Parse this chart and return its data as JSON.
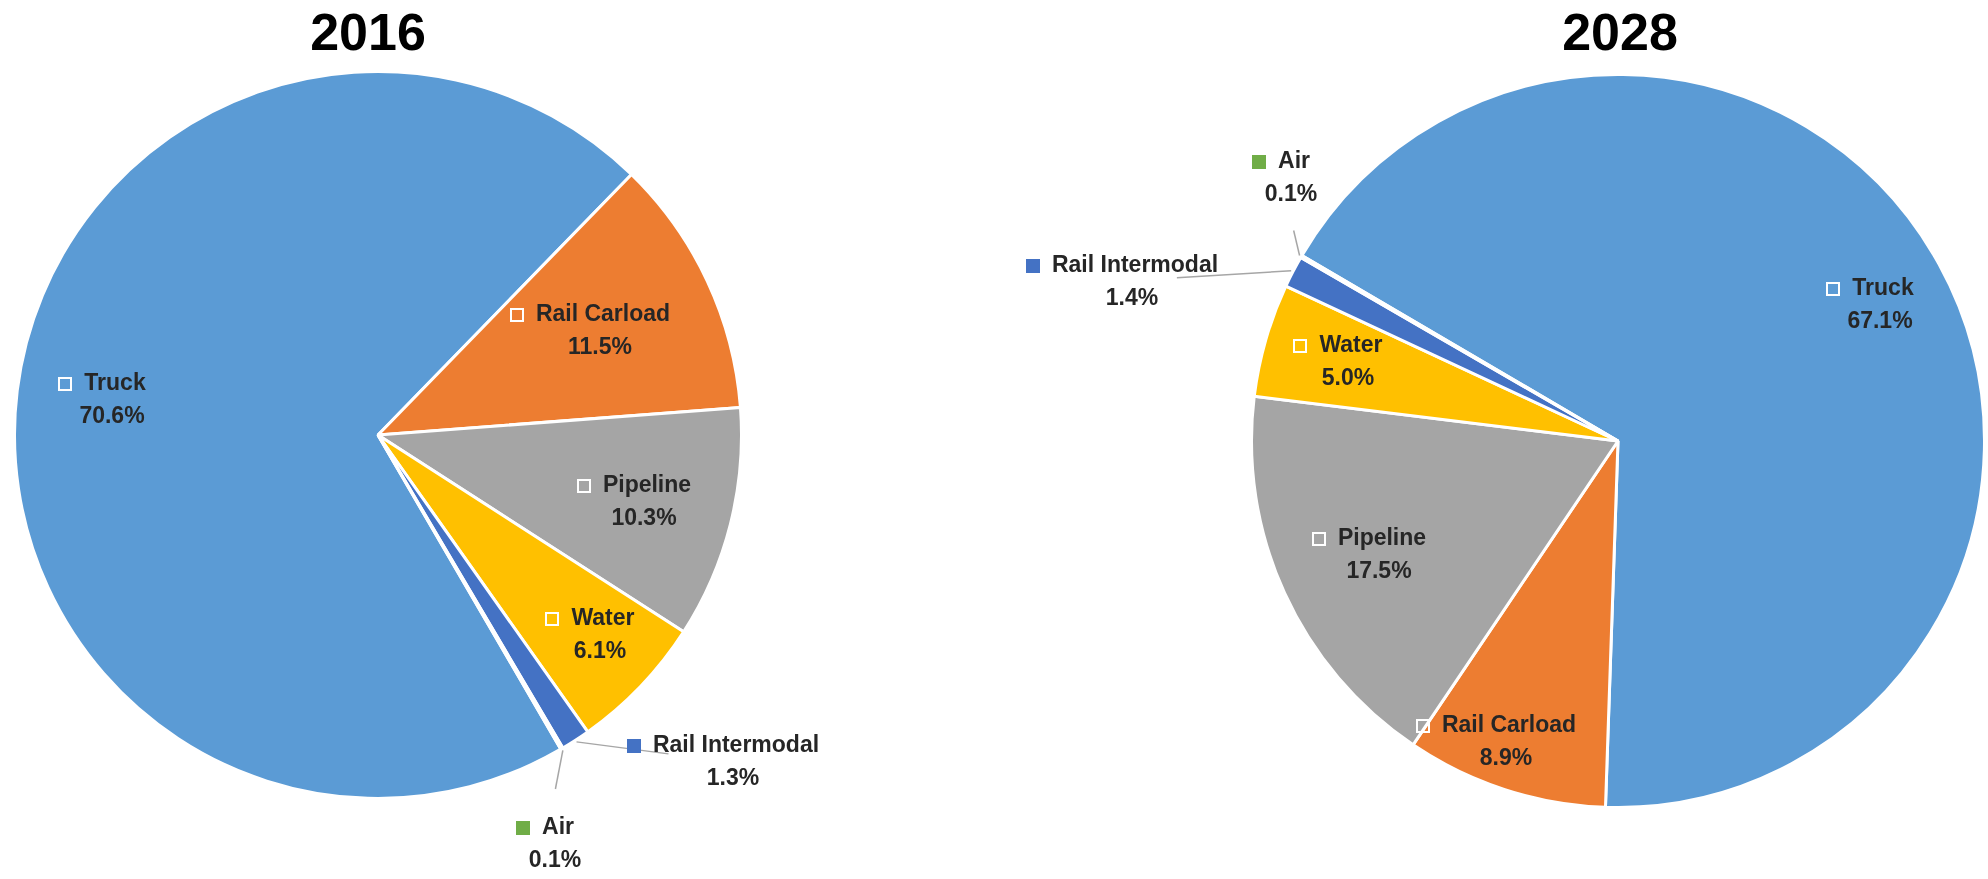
{
  "chart_data": [
    {
      "type": "pie",
      "title": "2016",
      "categories": [
        "Truck",
        "Rail Carload",
        "Pipeline",
        "Water",
        "Rail Intermodal",
        "Air"
      ],
      "values": [
        70.6,
        11.5,
        10.3,
        6.1,
        1.3,
        0.1
      ],
      "value_labels": [
        "70.6%",
        "11.5%",
        "10.3%",
        "6.1%",
        "1.3%",
        "0.1%"
      ],
      "colors": [
        "#5b9bd5",
        "#ed7d31",
        "#a5a5a5",
        "#ffc000",
        "#4472c4",
        "#70ad47"
      ],
      "legend": "bottom right"
    },
    {
      "type": "pie",
      "title": "2028",
      "categories": [
        "Truck",
        "Rail Carload",
        "Pipeline",
        "Water",
        "Rail Intermodal",
        "Air"
      ],
      "values": [
        67.1,
        8.9,
        17.5,
        5.0,
        1.4,
        0.1
      ],
      "value_labels": [
        "67.1%",
        "8.9%",
        "17.5%",
        "5.0%",
        "1.4%",
        "0.1%"
      ],
      "colors": [
        "#5b9bd5",
        "#ed7d31",
        "#a5a5a5",
        "#ffc000",
        "#4472c4",
        "#70ad47"
      ],
      "legend": "top left"
    }
  ]
}
